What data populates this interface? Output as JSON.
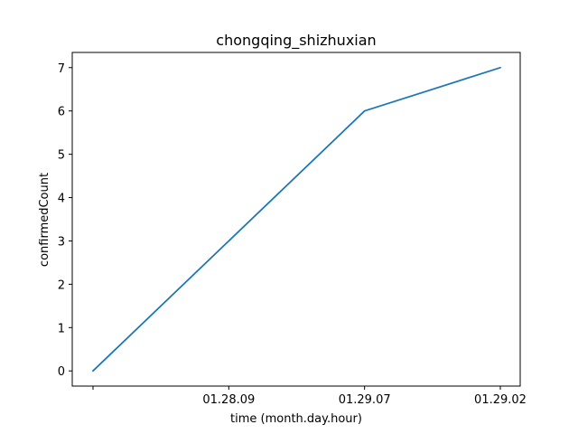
{
  "chart_data": {
    "type": "line",
    "title": "chongqing_shizhuxian",
    "xlabel": "time (month.day.hour)",
    "ylabel": "confirmedCount",
    "categories": [
      "",
      "01.28.09",
      "01.29.07",
      "01.29.02"
    ],
    "series": [
      {
        "values": [
          0,
          3,
          6,
          7
        ],
        "color": "#1f77b4"
      }
    ],
    "ylim": [
      -0.35,
      7.35
    ],
    "yticks": [
      0,
      1,
      2,
      3,
      4,
      5,
      6,
      7
    ],
    "grid": false,
    "legend": "none"
  }
}
